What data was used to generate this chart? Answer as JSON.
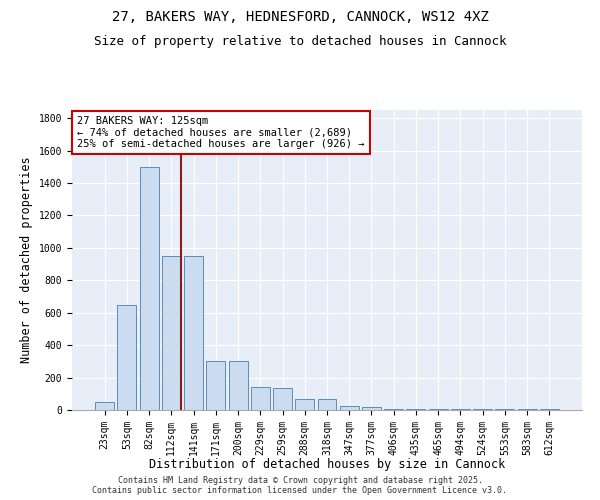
{
  "title": "27, BAKERS WAY, HEDNESFORD, CANNOCK, WS12 4XZ",
  "subtitle": "Size of property relative to detached houses in Cannock",
  "xlabel": "Distribution of detached houses by size in Cannock",
  "ylabel": "Number of detached properties",
  "categories": [
    "23sqm",
    "53sqm",
    "82sqm",
    "112sqm",
    "141sqm",
    "171sqm",
    "200sqm",
    "229sqm",
    "259sqm",
    "288sqm",
    "318sqm",
    "347sqm",
    "377sqm",
    "406sqm",
    "435sqm",
    "465sqm",
    "494sqm",
    "524sqm",
    "553sqm",
    "583sqm",
    "612sqm"
  ],
  "values": [
    50,
    650,
    1500,
    950,
    950,
    300,
    300,
    140,
    135,
    70,
    65,
    25,
    20,
    5,
    5,
    5,
    5,
    5,
    5,
    5,
    5
  ],
  "bar_color": "#ccdcf0",
  "bar_edge_color": "#5b8db8",
  "vline_x_index": 3,
  "vline_color": "#8b1a1a",
  "annotation_text": "27 BAKERS WAY: 125sqm\n← 74% of detached houses are smaller (2,689)\n25% of semi-detached houses are larger (926) →",
  "annotation_box_color": "#ffffff",
  "annotation_box_edge": "#cc0000",
  "ylim": [
    0,
    1850
  ],
  "yticks": [
    0,
    200,
    400,
    600,
    800,
    1000,
    1200,
    1400,
    1600,
    1800
  ],
  "background_color": "#e8eef8",
  "grid_color": "#ffffff",
  "footer": "Contains HM Land Registry data © Crown copyright and database right 2025.\nContains public sector information licensed under the Open Government Licence v3.0.",
  "title_fontsize": 10,
  "subtitle_fontsize": 9,
  "xlabel_fontsize": 8.5,
  "ylabel_fontsize": 8.5,
  "tick_fontsize": 7,
  "annotation_fontsize": 7.5,
  "footer_fontsize": 6
}
